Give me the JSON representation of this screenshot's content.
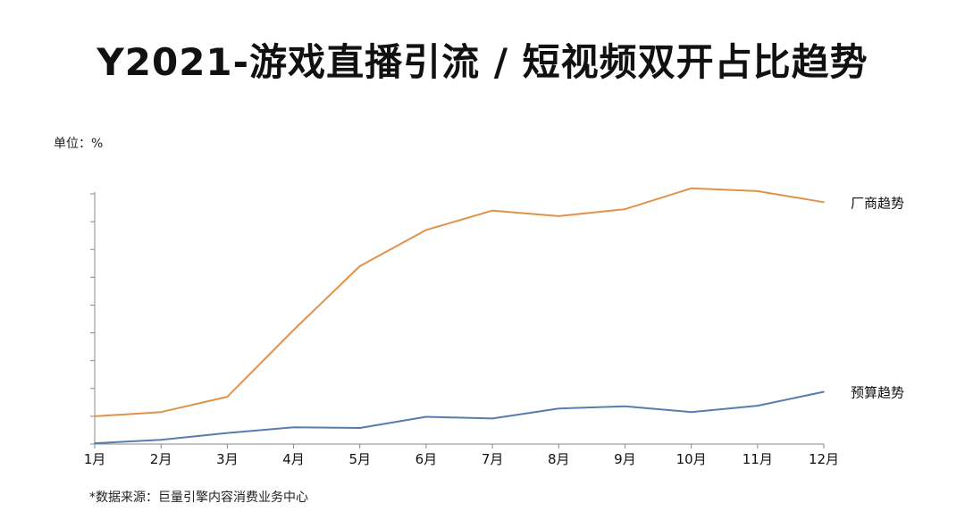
{
  "page": {
    "title": "Y2021-游戏直播引流 / 短视频双开占比趋势",
    "unit_label": "单位：%",
    "source_note": "*数据来源：巨量引擎内容消费业务中心"
  },
  "chart_data": {
    "type": "line",
    "title": "Y2021-游戏直播引流 / 短视频双开占比趋势",
    "ylabel": "单位：%",
    "xlabel": "",
    "categories": [
      "1月",
      "2月",
      "3月",
      "4月",
      "5月",
      "6月",
      "7月",
      "8月",
      "9月",
      "10月",
      "11月",
      "12月"
    ],
    "ylim": [
      0,
      9
    ],
    "grid": false,
    "legend": "inline-right",
    "series": [
      {
        "name": "厂商趋势",
        "color": "#e0924a",
        "values": [
          1.0,
          1.15,
          1.7,
          4.1,
          6.4,
          7.7,
          8.4,
          8.2,
          8.45,
          9.2,
          9.1,
          8.7
        ]
      },
      {
        "name": "预算趋势",
        "color": "#5a7bb0",
        "values": [
          0.03,
          0.15,
          0.4,
          0.6,
          0.58,
          0.98,
          0.92,
          1.28,
          1.36,
          1.15,
          1.38,
          1.88
        ]
      }
    ]
  }
}
